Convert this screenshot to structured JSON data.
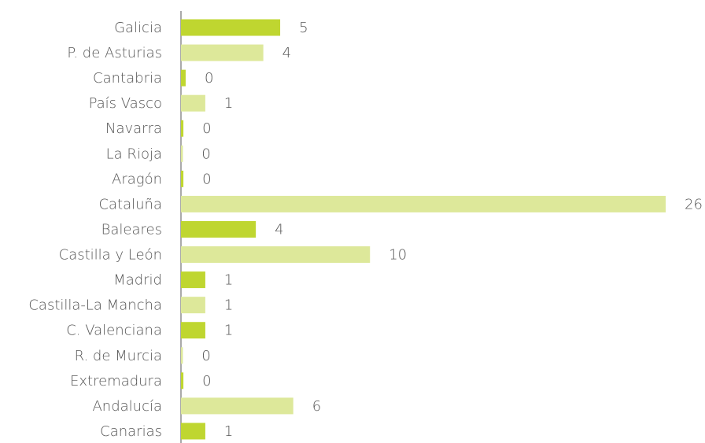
{
  "chart_data": {
    "type": "hbar",
    "categories": [
      "Galicia",
      "P. de Asturias",
      "Cantabria",
      "País Vasco",
      "Navarra",
      "La Rioja",
      "Aragón",
      "Cataluña",
      "Baleares",
      "Castilla y León",
      "Madrid",
      "Castilla-La Mancha",
      "C. Valenciana",
      "R. de Murcia",
      "Extremadura",
      "Andalucía",
      "Canarias"
    ],
    "values": [
      5.3,
      4.4,
      0.25,
      1.3,
      0.13,
      0.1,
      0.13,
      25.9,
      4.0,
      10.1,
      1.3,
      1.3,
      1.3,
      0.1,
      0.13,
      6.0,
      1.3
    ],
    "value_labels": [
      "5",
      "4",
      "0",
      "1",
      "0",
      "0",
      "0",
      "26",
      "4",
      "10",
      "1",
      "1",
      "1",
      "0",
      "0",
      "6",
      "1"
    ],
    "colors": [
      "#bfd630",
      "#dde89a",
      "#bfd630",
      "#dde89a",
      "#bfd630",
      "#dde89a",
      "#bfd630",
      "#dde89a",
      "#bfd630",
      "#dde89a",
      "#bfd630",
      "#dde89a",
      "#bfd630",
      "#dde89a",
      "#bfd630",
      "#dde89a",
      "#bfd630"
    ],
    "xlim": [
      0,
      28
    ]
  }
}
